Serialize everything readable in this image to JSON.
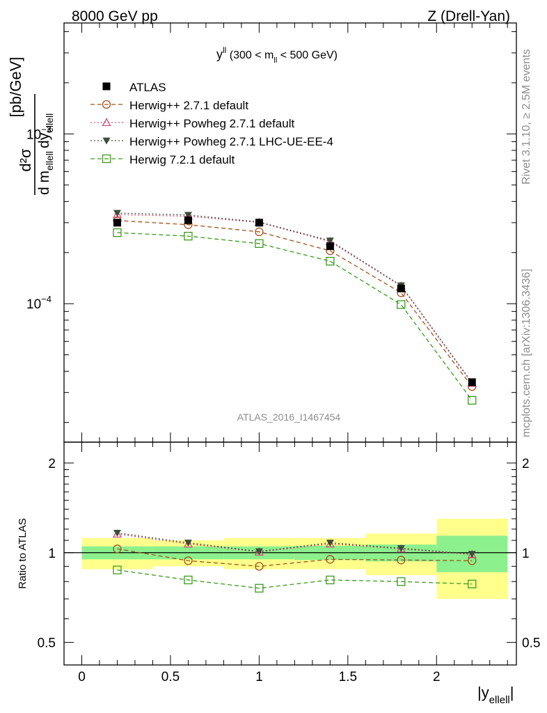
{
  "header": {
    "energy_label": "8000 GeV pp",
    "process_label": "Z (Drell-Yan)"
  },
  "side_labels": {
    "rivet": "Rivet 3.1.10, ≥ 2.5M events",
    "mcplots": "mcplots.cern.ch [arXiv:1306.3436]"
  },
  "watermark": "ATLAS_2016_I1467454",
  "chart_data": {
    "type": "line",
    "title": "y^ll (300 < m_ll < 500 GeV)",
    "title_parts": {
      "main": "y",
      "sup": "ll",
      "rest1": " (300 < m",
      "sub": "ll",
      "rest2": " < 500 GeV)"
    },
    "ylabel": "d²σ / d m_ellell dy_ellell [pb/GeV]",
    "ylabel_parts": {
      "num": "d²σ",
      "den_a": "d m",
      "den_sub_a": "ellell",
      "den_b": "dy",
      "den_sub_b": "ellell",
      "unit": "[pb/GeV]"
    },
    "xlabel": "|y_ellell|",
    "xlabel_parts": {
      "main": "|y",
      "sub": "ellell",
      "end": "|"
    },
    "ratio_ylabel": "Ratio to ATLAS",
    "xlim": [
      -0.1,
      2.45
    ],
    "ylim_main": [
      1.53e-05,
      0.0045
    ],
    "ylim_ratio": [
      0.42,
      2.35
    ],
    "x_ticks": [
      0,
      0.5,
      1,
      1.5,
      2
    ],
    "x_tick_labels": [
      "0",
      "0.5",
      "1",
      "1.5",
      "2"
    ],
    "main_ticks": [
      0.0001,
      0.001
    ],
    "main_tick_labels": [
      [
        "10",
        "−4"
      ],
      [
        "10",
        "−3"
      ]
    ],
    "ratio_ticks": [
      0.5,
      1,
      2
    ],
    "ratio_tick_labels": [
      "0.5",
      "1",
      "2"
    ],
    "x": [
      0.2,
      0.6,
      1.0,
      1.4,
      1.8,
      2.2
    ],
    "bin_edges": [
      0,
      0.4,
      0.8,
      1.2,
      1.6,
      2.0,
      2.4
    ],
    "atlas": {
      "name": "ATLAS",
      "values": [
        0.0003,
        0.00031,
        0.0003,
        0.000218,
        0.000123,
        3.45e-05
      ],
      "band_inner": [
        0.05,
        0.05,
        0.05,
        0.055,
        0.065,
        0.14
      ],
      "band_outer": [
        0.12,
        0.1,
        0.12,
        0.12,
        0.16,
        0.3
      ]
    },
    "series": [
      {
        "name": "Herwig++ 2.7.1 default",
        "color": "#a0521d",
        "marker": "circle",
        "dash": "6,4",
        "values": [
          0.000309,
          0.000292,
          0.000265,
          0.000205,
          0.000116,
          3.25e-05
        ],
        "ratio": [
          1.03,
          0.94,
          0.9,
          0.95,
          0.945,
          0.94
        ]
      },
      {
        "name": "Herwig++ Powheg 2.7.1 default",
        "color": "#d0507a",
        "marker": "triangle-up",
        "dash": "2,3",
        "values": [
          0.000335,
          0.000327,
          0.000301,
          0.000232,
          0.000127,
          3.4e-05
        ],
        "ratio": [
          1.155,
          1.07,
          1.005,
          1.07,
          1.03,
          0.985
        ]
      },
      {
        "name": "Herwig++ Powheg 2.7.1 LHC-UE-EE-4",
        "color": "#3d4d38",
        "marker": "triangle-down",
        "dash": "2,3",
        "values": [
          0.000342,
          0.000333,
          0.000303,
          0.000235,
          0.000128,
          3.43e-05
        ],
        "ratio": [
          1.165,
          1.08,
          1.01,
          1.08,
          1.035,
          0.99
        ]
      },
      {
        "name": "Herwig 7.2.1 default",
        "color": "#3a9a1d",
        "marker": "square",
        "dash": "6,4",
        "values": [
          0.000262,
          0.00025,
          0.000226,
          0.000178,
          9.88e-05,
          2.7e-05
        ],
        "ratio": [
          0.875,
          0.81,
          0.76,
          0.81,
          0.8,
          0.785
        ]
      }
    ],
    "legend_location": "top-left"
  }
}
